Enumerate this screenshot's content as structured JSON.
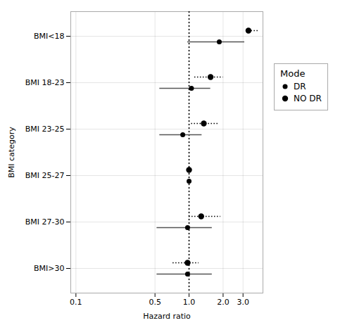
{
  "chart_data": {
    "type": "forest",
    "xlabel": "Hazard ratio",
    "ylabel": "BMI category",
    "categories": [
      "BMI<18",
      "BMI 18-23",
      "BMI 23-25",
      "BMI 25-27",
      "BMI 27-30",
      "BMI>30"
    ],
    "series": [
      {
        "name": "DR",
        "color": "#555555",
        "line_style": "solid",
        "marker": "circle",
        "values": [
          1.85,
          1.05,
          0.88,
          1.0,
          0.97,
          0.97
        ],
        "lo": [
          0.97,
          0.55,
          0.55,
          1.0,
          0.52,
          0.52
        ],
        "hi": [
          3.1,
          1.55,
          1.3,
          1.0,
          1.6,
          1.6
        ]
      },
      {
        "name": "NO DR",
        "color": "black",
        "line_style": "dotted",
        "marker": "circle",
        "values": [
          3.35,
          1.55,
          1.35,
          1.0,
          1.28,
          0.97
        ],
        "lo": [
          3.35,
          1.12,
          1.05,
          1.0,
          1.0,
          0.72
        ],
        "hi": [
          4.2,
          2.0,
          1.8,
          1.0,
          1.9,
          1.22
        ]
      }
    ],
    "color": "black",
    "ref_line": 1.0,
    "log": "x",
    "xlim": [
      0.09,
      4.5
    ],
    "xticks": [
      0.1,
      0.5,
      {
        "value": 1.0,
        "label": "1.0"
      },
      {
        "value": 2.0,
        "label": "2.0"
      },
      {
        "value": 3.0,
        "label": "3.0"
      }
    ],
    "grid": true,
    "legend": "right",
    "legend_title": "Mode"
  }
}
